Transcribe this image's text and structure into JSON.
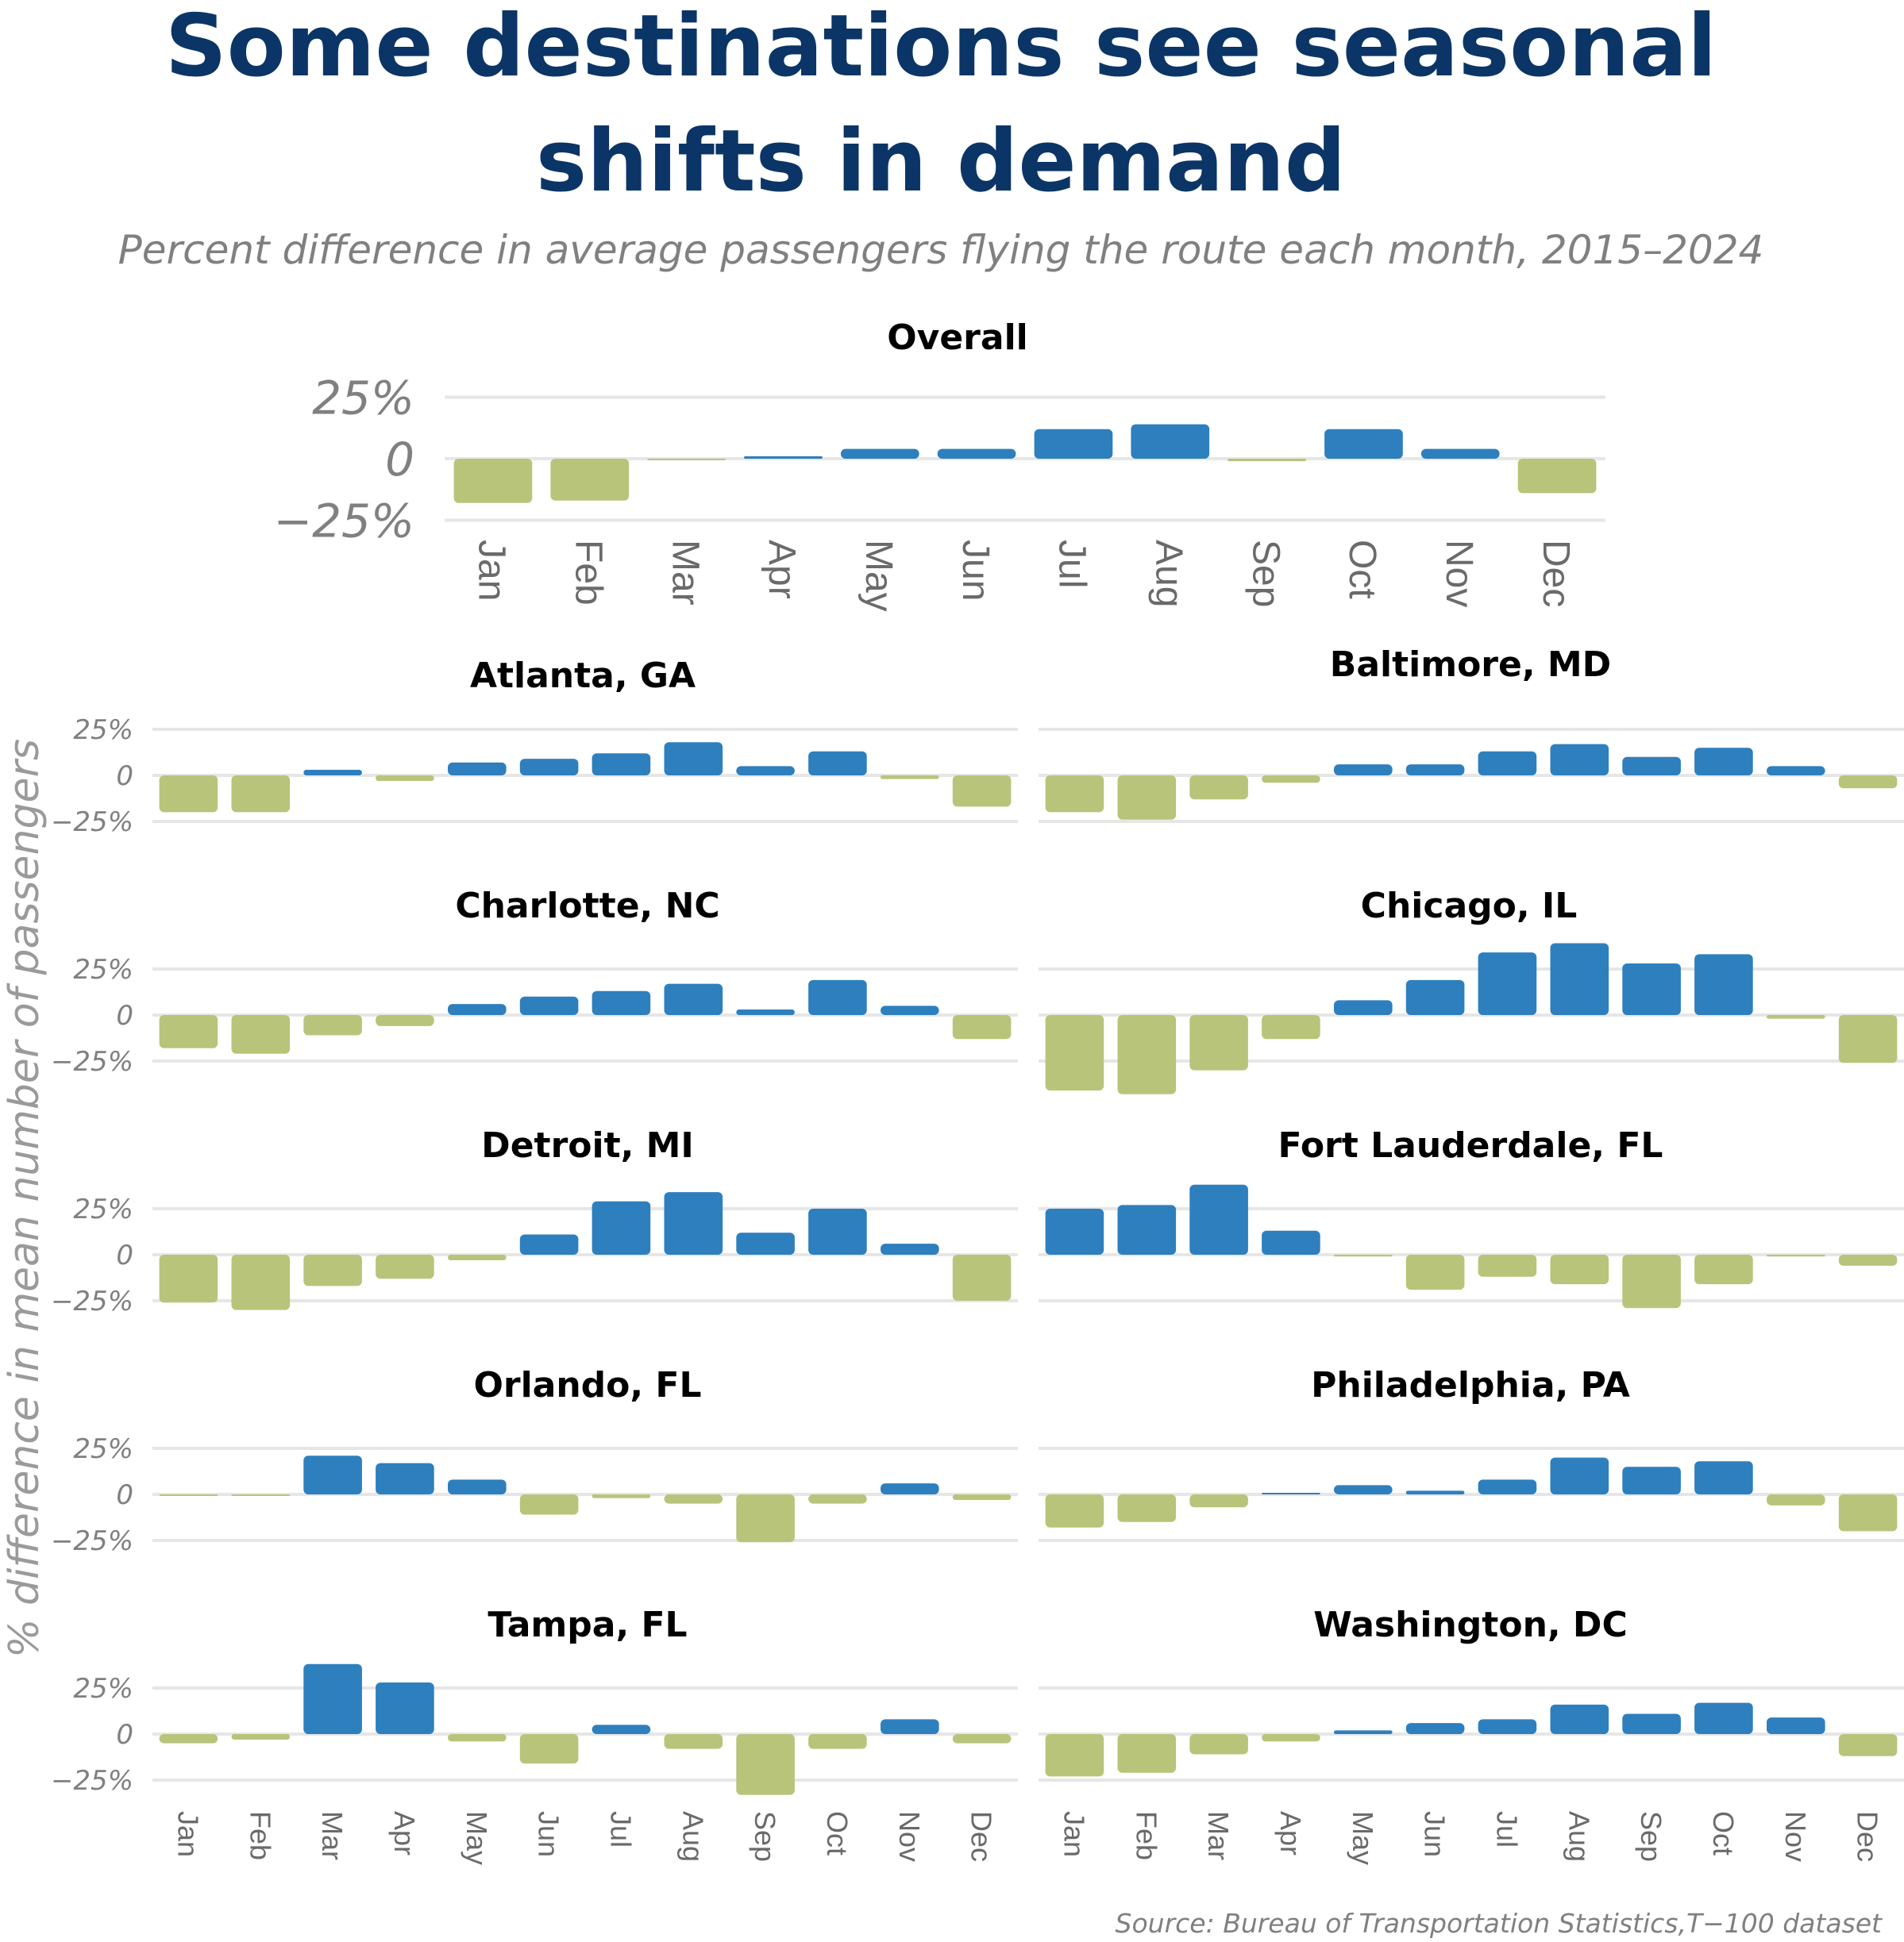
{
  "title_line1": "Some destinations see seasonal",
  "title_line2": "shifts in demand",
  "subtitle": "Percent difference in average passengers flying the route each month, 2015–2024",
  "ylabel": "% difference in mean number of passengers",
  "source": "Source: Bureau of Transportation Statistics,T−100 dataset",
  "colors": {
    "positive": "#2e7fbe",
    "negative": "#b8c47a",
    "title": "#0b3566"
  },
  "chart_data": {
    "type": "bar",
    "categories": [
      "Jan",
      "Feb",
      "Mar",
      "Apr",
      "May",
      "Jun",
      "Jul",
      "Aug",
      "Sep",
      "Oct",
      "Nov",
      "Dec"
    ],
    "y_ticks": [
      {
        "value": 25,
        "label": "25%"
      },
      {
        "value": 0,
        "label": "0"
      },
      {
        "value": -25,
        "label": "−25%"
      }
    ],
    "panels": [
      {
        "name": "Overall",
        "values": [
          -18,
          -17,
          -0.5,
          1,
          4,
          4,
          12,
          14,
          -1,
          12,
          4,
          -14
        ]
      },
      {
        "name": "Atlanta, GA",
        "values": [
          -20,
          -20,
          3,
          -3,
          7,
          9,
          12,
          18,
          5,
          13,
          -2,
          -17
        ]
      },
      {
        "name": "Baltimore, MD",
        "values": [
          -20,
          -24,
          -13,
          -4,
          6,
          6,
          13,
          17,
          10,
          15,
          5,
          -7
        ]
      },
      {
        "name": "Charlotte, NC",
        "values": [
          -18,
          -21,
          -11,
          -6,
          6,
          10,
          13,
          17,
          3,
          19,
          5,
          -13
        ]
      },
      {
        "name": "Chicago, IL",
        "values": [
          -41,
          -43,
          -30,
          -13,
          8,
          19,
          34,
          39,
          28,
          33,
          -2,
          -26
        ]
      },
      {
        "name": "Detroit, MI",
        "values": [
          -26,
          -30,
          -17,
          -13,
          -3,
          11,
          29,
          34,
          12,
          25,
          6,
          -25
        ]
      },
      {
        "name": "Fort Lauderdale, FL",
        "values": [
          25,
          27,
          38,
          13,
          -1,
          -19,
          -12,
          -16,
          -29,
          -16,
          -1,
          -6
        ]
      },
      {
        "name": "Orlando, FL",
        "values": [
          -0.5,
          -0.5,
          21,
          17,
          8,
          -11,
          -2,
          -5,
          -26,
          -5,
          6,
          -3
        ]
      },
      {
        "name": "Philadelphia, PA",
        "values": [
          -18,
          -15,
          -7,
          0.3,
          5,
          2,
          8,
          20,
          15,
          18,
          -6,
          -20
        ]
      },
      {
        "name": "Tampa, FL",
        "values": [
          -5,
          -3,
          38,
          28,
          -4,
          -16,
          5,
          -8,
          -33,
          -8,
          8,
          -5
        ]
      },
      {
        "name": "Washington, DC",
        "values": [
          -23,
          -21,
          -11,
          -4,
          2,
          6,
          8,
          16,
          11,
          17,
          9,
          -12
        ]
      }
    ]
  }
}
